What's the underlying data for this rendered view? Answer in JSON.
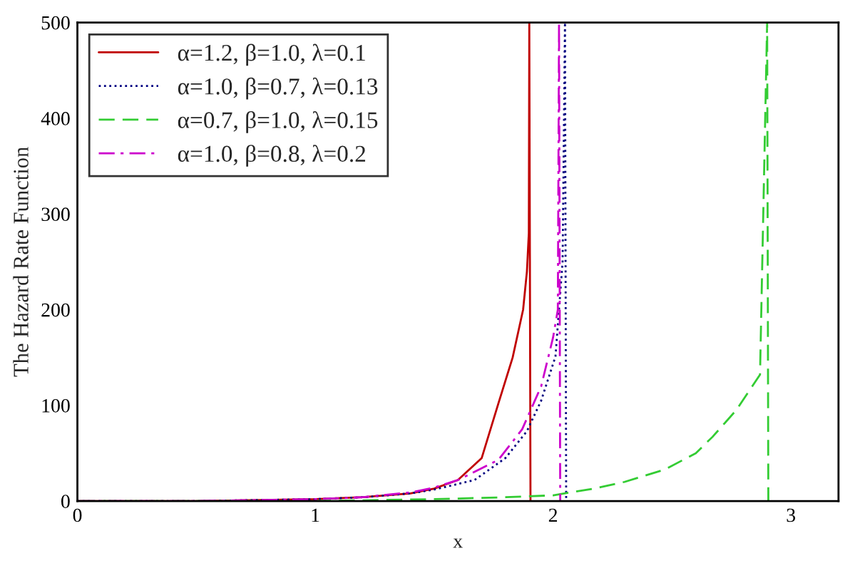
{
  "chart_data": {
    "type": "line",
    "xlabel": "x",
    "ylabel": "The Hazard Rate Function",
    "xlim": [
      0,
      3.2
    ],
    "ylim": [
      0,
      500
    ],
    "xticks": [
      0,
      1,
      2,
      3
    ],
    "yticks": [
      0,
      100,
      200,
      300,
      400,
      500
    ],
    "grid": false,
    "legend": "top left",
    "marker": "none",
    "series": [
      {
        "name": "α=1.2, β=1.0, λ=0.1",
        "color": "#c00000",
        "line_style": "solid",
        "x": [
          0,
          0.5,
          1.0,
          1.2,
          1.4,
          1.5,
          1.6,
          1.7,
          1.77,
          1.83,
          1.874,
          1.89,
          1.898,
          1.9,
          1.905
        ],
        "values": [
          0,
          0,
          2,
          4,
          8,
          13,
          22,
          45,
          102,
          150,
          200,
          240,
          280,
          500,
          0
        ]
      },
      {
        "name": "α=1.0, β=0.7, λ=0.13",
        "color": "#000080",
        "line_style": "dotted",
        "x": [
          0,
          0.5,
          1.0,
          1.2,
          1.4,
          1.5,
          1.67,
          1.8,
          1.89,
          1.95,
          2.01,
          2.04,
          2.05,
          2.055
        ],
        "values": [
          0,
          0,
          2,
          4,
          8,
          12,
          22,
          45,
          73,
          105,
          151,
          250,
          500,
          0
        ]
      },
      {
        "name": "α=0.7, β=1.0, λ=0.15",
        "color": "#33cc33",
        "line_style": "dashed",
        "x": [
          0,
          1.0,
          1.5,
          1.8,
          2.0,
          2.17,
          2.3,
          2.47,
          2.6,
          2.67,
          2.77,
          2.87,
          2.9,
          2.905
        ],
        "values": [
          0,
          0,
          2,
          4,
          6,
          13,
          20,
          33,
          50,
          67,
          95,
          132,
          500,
          0
        ]
      },
      {
        "name": "α=1.0, β=0.8, λ=0.2",
        "color": "#cc00cc",
        "line_style": "dashdot",
        "x": [
          0,
          0.5,
          1.0,
          1.2,
          1.4,
          1.5,
          1.6,
          1.77,
          1.87,
          1.95,
          2.0,
          2.02,
          2.025,
          2.03
        ],
        "values": [
          0,
          0,
          2,
          4,
          9,
          14,
          22,
          43,
          75,
          120,
          171,
          200,
          500,
          0
        ]
      }
    ]
  }
}
